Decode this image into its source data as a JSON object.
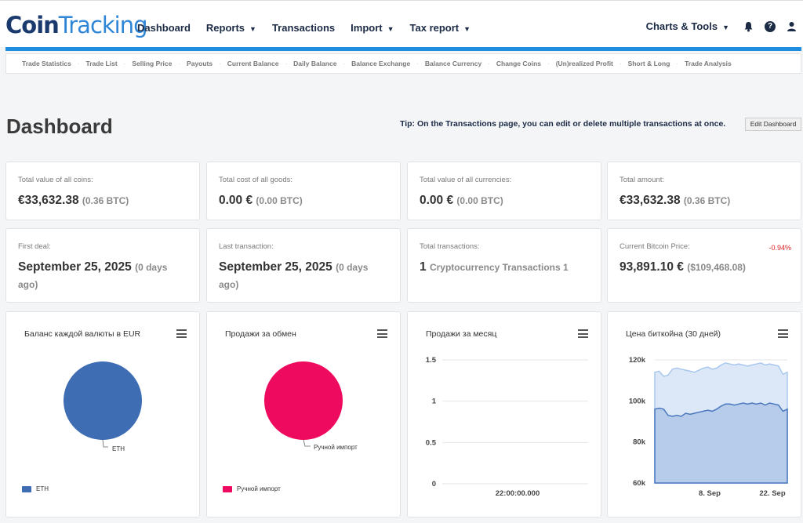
{
  "logo": {
    "part1": "Coin",
    "part2": "Tracking"
  },
  "nav": {
    "items": [
      "Dashboard",
      "Reports",
      "Transactions",
      "Import",
      "Tax report"
    ],
    "charts_tools": "Charts & Tools"
  },
  "subnav": [
    "Trade Statistics",
    "Trade List",
    "Selling Price",
    "Payouts",
    "Current Balance",
    "Daily Balance",
    "Balance Exchange",
    "Balance Currency",
    "Change Coins",
    "(Un)realized Profit",
    "Short & Long",
    "Trade Analysis"
  ],
  "page": {
    "title": "Dashboard",
    "tip": "Tip: On the Transactions page, you can edit or delete multiple transactions at once.",
    "edit_label": "Edit Dashboard"
  },
  "stats": [
    {
      "label": "Total value of all coins:",
      "value": "€33,632.38",
      "sub": "(0.36 BTC)"
    },
    {
      "label": "Total cost of all goods:",
      "value": "0.00 €",
      "sub": "(0.00 BTC)"
    },
    {
      "label": "Total value of all currencies:",
      "value": "0.00 €",
      "sub": "(0.00 BTC)"
    },
    {
      "label": "Total amount:",
      "value": "€33,632.38",
      "sub": "(0.36 BTC)"
    },
    {
      "label": "First deal:",
      "value": "September 25, 2025",
      "sub": "(0 days ago)"
    },
    {
      "label": "Last transaction:",
      "value": "September 25, 2025",
      "sub": "(0 days ago)"
    },
    {
      "label": "Total transactions:",
      "value": "1",
      "sub": "Cryptocurrency Transactions 1"
    },
    {
      "label": "Current Bitcoin Price:",
      "value": "93,891.10 €",
      "sub": "($109,468.08)",
      "delta": "-0.94%"
    }
  ],
  "charts": {
    "balance": {
      "title": "Баланс каждой валюты в EUR",
      "slice": "ETH",
      "legend": "ETH",
      "color": "#3e6db4"
    },
    "exchange": {
      "title": "Продажи за обмен",
      "slice": "Ручной импорт",
      "legend": "Ручной импорт",
      "color": "#ee0a5e"
    },
    "monthly": {
      "title": "Продажи за месяц",
      "xlabel": "22:00:00.000"
    },
    "btc": {
      "title": "Цена биткойна (30 дней)"
    }
  },
  "chart_data": [
    {
      "type": "pie",
      "title": "Баланс каждой валюты в EUR",
      "categories": [
        "ETH"
      ],
      "values": [
        100
      ],
      "legend": "bottom-left"
    },
    {
      "type": "pie",
      "title": "Продажи за обмен",
      "categories": [
        "Ручной импорт"
      ],
      "values": [
        100
      ],
      "legend": "bottom-left"
    },
    {
      "type": "bar",
      "title": "Продажи за месяц",
      "categories": [
        "22:00:00.000"
      ],
      "values": [
        0
      ],
      "ylim": [
        0,
        1.5
      ],
      "yticks": [
        "0",
        "0.5",
        "1",
        "1.5"
      ],
      "grid": true
    },
    {
      "type": "area",
      "title": "Цена биткойна (30 дней)",
      "ylim": [
        60000,
        120000
      ],
      "yticks": [
        "60k",
        "80k",
        "100k",
        "120k"
      ],
      "xticks": [
        "8. Sep",
        "22. Sep"
      ],
      "grid": true,
      "series": [
        {
          "values": [
            114000,
            114500,
            112000,
            112500,
            115500,
            116000,
            115500,
            115000,
            114500,
            114000,
            115000,
            116000,
            116500,
            115500,
            116000,
            117500,
            118500,
            118000,
            117500,
            118000,
            117500,
            117000,
            117500,
            118000,
            118500,
            117500,
            118000,
            117500,
            117000,
            113000,
            114000
          ]
        },
        {
          "values": [
            96000,
            96500,
            96000,
            93000,
            92500,
            93000,
            92500,
            94000,
            93500,
            94000,
            94500,
            95000,
            95500,
            95000,
            96000,
            97500,
            98500,
            98500,
            98000,
            98500,
            99000,
            98500,
            99000,
            98500,
            99000,
            98000,
            99000,
            98500,
            98000,
            95000,
            96000
          ]
        }
      ]
    }
  ]
}
